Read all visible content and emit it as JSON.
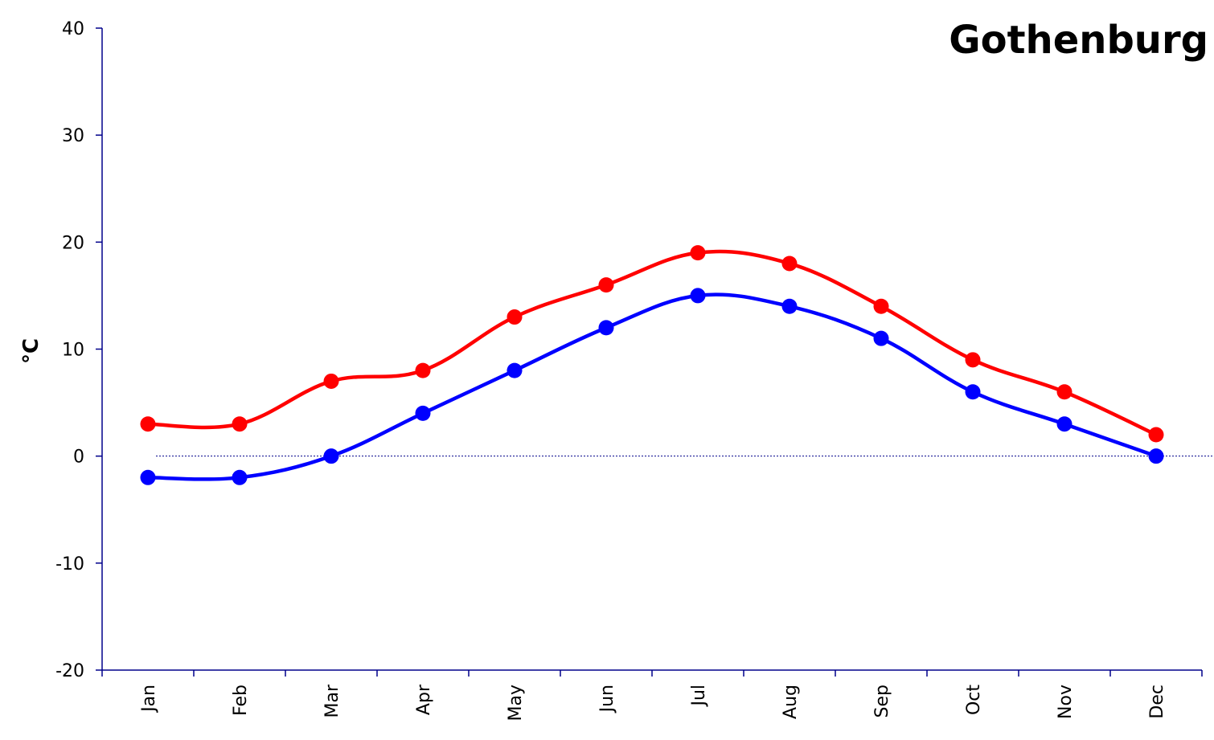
{
  "chart_data": {
    "type": "line",
    "title": "Gothenburg",
    "xlabel": "",
    "ylabel": "°C",
    "categories": [
      "Jan",
      "Feb",
      "Mar",
      "Apr",
      "May",
      "Jun",
      "Jul",
      "Aug",
      "Sep",
      "Oct",
      "Nov",
      "Dec"
    ],
    "ylim": [
      -20,
      40
    ],
    "yticks": [
      -20,
      -10,
      0,
      10,
      20,
      30,
      40
    ],
    "grid": false,
    "legend": "none",
    "zero_line": "dotted",
    "series": [
      {
        "color": "#ff0000",
        "values": [
          3,
          3,
          7,
          8,
          13,
          16,
          19,
          18,
          14,
          9,
          6,
          2
        ]
      },
      {
        "color": "#0000ff",
        "values": [
          -2,
          -2,
          0,
          4,
          8,
          12,
          15,
          14,
          11,
          6,
          3,
          0
        ]
      }
    ]
  }
}
